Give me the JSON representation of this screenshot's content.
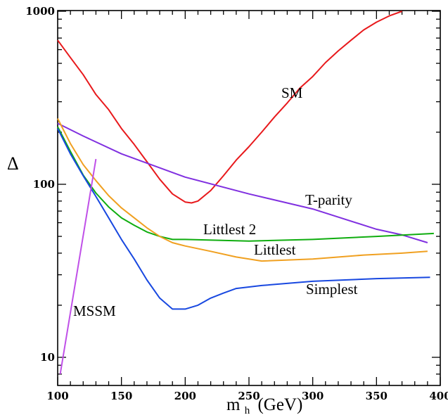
{
  "chart_data": {
    "type": "line",
    "title": "",
    "xlabel": "m",
    "xlabel_sub": "h",
    "xlabel_unit": "(GeV)",
    "ylabel": "Δ",
    "xlim": [
      100,
      400
    ],
    "ylim": [
      8,
      1000
    ],
    "yscale": "log",
    "xticks": [
      100,
      150,
      200,
      250,
      300,
      350,
      400
    ],
    "yticks": [
      10,
      100,
      1000
    ],
    "grid": false,
    "legend": "none",
    "series": [
      {
        "name": "SM",
        "color": "#e8191c",
        "points": [
          [
            100,
            680
          ],
          [
            110,
            540
          ],
          [
            120,
            430
          ],
          [
            130,
            330
          ],
          [
            140,
            270
          ],
          [
            150,
            210
          ],
          [
            160,
            170
          ],
          [
            170,
            135
          ],
          [
            180,
            107
          ],
          [
            190,
            88
          ],
          [
            200,
            79
          ],
          [
            205,
            78
          ],
          [
            210,
            80
          ],
          [
            220,
            92
          ],
          [
            230,
            112
          ],
          [
            240,
            138
          ],
          [
            250,
            165
          ],
          [
            260,
            200
          ],
          [
            270,
            245
          ],
          [
            280,
            295
          ],
          [
            290,
            360
          ],
          [
            300,
            420
          ],
          [
            310,
            505
          ],
          [
            320,
            590
          ],
          [
            330,
            680
          ],
          [
            340,
            780
          ],
          [
            350,
            865
          ],
          [
            360,
            940
          ],
          [
            370,
            1000
          ]
        ]
      },
      {
        "name": "T-parity",
        "color": "#8030e0",
        "points": [
          [
            100,
            225
          ],
          [
            120,
            190
          ],
          [
            150,
            150
          ],
          [
            200,
            110
          ],
          [
            250,
            88
          ],
          [
            300,
            72
          ],
          [
            350,
            55
          ],
          [
            370,
            51
          ],
          [
            390,
            46
          ]
        ]
      },
      {
        "name": "Littlest 2",
        "color": "#0fad0f",
        "points": [
          [
            100,
            215
          ],
          [
            110,
            155
          ],
          [
            120,
            113
          ],
          [
            130,
            89
          ],
          [
            140,
            74
          ],
          [
            150,
            64
          ],
          [
            160,
            58
          ],
          [
            170,
            53
          ],
          [
            180,
            50
          ],
          [
            190,
            48
          ],
          [
            200,
            48
          ],
          [
            250,
            47
          ],
          [
            300,
            48
          ],
          [
            350,
            50
          ],
          [
            395,
            52
          ]
        ]
      },
      {
        "name": "Littlest",
        "color": "#f0a020",
        "points": [
          [
            100,
            240
          ],
          [
            110,
            172
          ],
          [
            120,
            130
          ],
          [
            130,
            105
          ],
          [
            140,
            86
          ],
          [
            150,
            73
          ],
          [
            160,
            64
          ],
          [
            170,
            56
          ],
          [
            180,
            50
          ],
          [
            190,
            46
          ],
          [
            200,
            44
          ],
          [
            220,
            41
          ],
          [
            240,
            38
          ],
          [
            260,
            36
          ],
          [
            300,
            37
          ],
          [
            340,
            39
          ],
          [
            370,
            40
          ],
          [
            390,
            41
          ]
        ]
      },
      {
        "name": "Simplest",
        "color": "#1848e0",
        "points": [
          [
            100,
            210
          ],
          [
            110,
            150
          ],
          [
            120,
            112
          ],
          [
            130,
            85
          ],
          [
            140,
            64
          ],
          [
            150,
            48
          ],
          [
            160,
            37
          ],
          [
            170,
            28
          ],
          [
            180,
            22
          ],
          [
            190,
            19
          ],
          [
            200,
            19
          ],
          [
            210,
            20
          ],
          [
            220,
            22
          ],
          [
            230,
            23.5
          ],
          [
            240,
            25
          ],
          [
            260,
            26
          ],
          [
            300,
            27.5
          ],
          [
            350,
            28.5
          ],
          [
            392,
            29
          ]
        ]
      },
      {
        "name": "MSSM",
        "color": "#c050e8",
        "points": [
          [
            102,
            8
          ],
          [
            130,
            140
          ]
        ]
      }
    ],
    "annotations": [
      "SM",
      "T-parity",
      "Littlest 2",
      "Littlest",
      "Simplest",
      "MSSM"
    ]
  }
}
